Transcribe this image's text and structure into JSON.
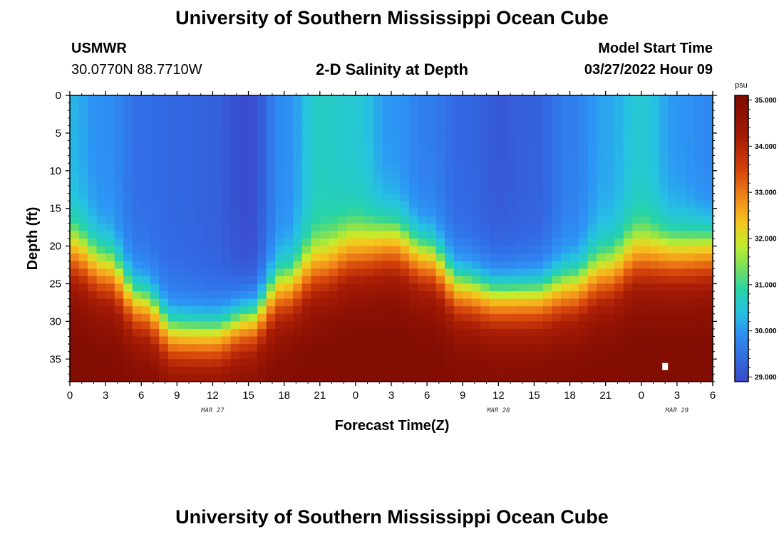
{
  "header": {
    "title": "University of Southern Mississippi Ocean Cube",
    "station": "USMWR",
    "coords": "30.0770N  88.7710W",
    "subtitle": "2-D Salinity at Depth",
    "start_label": "Model Start Time",
    "start_value": "03/27/2022 Hour 09"
  },
  "footer": {
    "title": "University of Southern Mississippi Ocean Cube"
  },
  "colors": {
    "low": "#3a48c8",
    "mid": "#26d4a8",
    "high": "#860b02"
  },
  "chart_data": {
    "type": "heatmap",
    "title": "2-D Salinity at Depth",
    "xlabel": "Forecast Time(Z)",
    "ylabel": "Depth (ft)",
    "x_range_hours": [
      0,
      54
    ],
    "y_range_ft": [
      0,
      38
    ],
    "xtick_hours": [
      0,
      3,
      6,
      9,
      12,
      15,
      18,
      21,
      24,
      27,
      30,
      33,
      36,
      39,
      42,
      45,
      48,
      51,
      54
    ],
    "xtick_labels": [
      "0",
      "3",
      "6",
      "9",
      "12",
      "15",
      "18",
      "21",
      "0",
      "3",
      "6",
      "9",
      "12",
      "15",
      "18",
      "21",
      "0",
      "3",
      "6"
    ],
    "date_labels": [
      {
        "hour": 12,
        "text": "MAR 27"
      },
      {
        "hour": 36,
        "text": "MAR 28"
      },
      {
        "hour": 51,
        "text": "MAR 29"
      }
    ],
    "ytick_values": [
      0,
      5,
      10,
      15,
      20,
      25,
      30,
      35
    ],
    "ytick_labels": [
      "0",
      "5",
      "10",
      "15",
      "20",
      "25",
      "30",
      "35"
    ],
    "colorbar": {
      "unit": "psu",
      "range": [
        28.9,
        35.1
      ],
      "ticks": [
        29.0,
        30.0,
        31.0,
        32.0,
        33.0,
        34.0,
        35.0
      ],
      "tick_labels": [
        "29.000",
        "30.000",
        "31.000",
        "32.000",
        "33.000",
        "34.000",
        "35.000"
      ]
    },
    "halocline_depth_ft": [
      {
        "hour": 0,
        "depth": 22.0
      },
      {
        "hour": 3,
        "depth": 24.5
      },
      {
        "hour": 6,
        "depth": 29.0
      },
      {
        "hour": 9,
        "depth": 33.0
      },
      {
        "hour": 12,
        "depth": 33.0
      },
      {
        "hour": 15,
        "depth": 31.0
      },
      {
        "hour": 18,
        "depth": 27.0
      },
      {
        "hour": 21,
        "depth": 24.0
      },
      {
        "hour": 24,
        "depth": 22.0
      },
      {
        "hour": 27,
        "depth": 21.0
      },
      {
        "hour": 30,
        "depth": 23.0
      },
      {
        "hour": 33,
        "depth": 27.0
      },
      {
        "hour": 36,
        "depth": 28.0
      },
      {
        "hour": 39,
        "depth": 28.0
      },
      {
        "hour": 42,
        "depth": 27.0
      },
      {
        "hour": 45,
        "depth": 25.0
      },
      {
        "hour": 48,
        "depth": 22.5
      },
      {
        "hour": 51,
        "depth": 22.5
      },
      {
        "hour": 54,
        "depth": 22.0
      }
    ],
    "surface_salinity_psu": [
      {
        "hour": 0,
        "value": 30.2
      },
      {
        "hour": 3,
        "value": 29.9
      },
      {
        "hour": 6,
        "value": 29.5
      },
      {
        "hour": 9,
        "value": 29.4
      },
      {
        "hour": 12,
        "value": 29.3
      },
      {
        "hour": 15,
        "value": 29.0
      },
      {
        "hour": 18,
        "value": 29.9
      },
      {
        "hour": 21,
        "value": 30.5
      },
      {
        "hour": 24,
        "value": 30.4
      },
      {
        "hour": 27,
        "value": 30.0
      },
      {
        "hour": 30,
        "value": 29.7
      },
      {
        "hour": 33,
        "value": 29.4
      },
      {
        "hour": 36,
        "value": 29.2
      },
      {
        "hour": 39,
        "value": 29.3
      },
      {
        "hour": 42,
        "value": 29.7
      },
      {
        "hour": 45,
        "value": 30.1
      },
      {
        "hour": 48,
        "value": 30.4
      },
      {
        "hour": 51,
        "value": 30.0
      },
      {
        "hour": 54,
        "value": 29.8
      }
    ],
    "bottom_salinity_psu": 35.0,
    "missing_cell": {
      "hour": 50,
      "depth": 36
    }
  }
}
